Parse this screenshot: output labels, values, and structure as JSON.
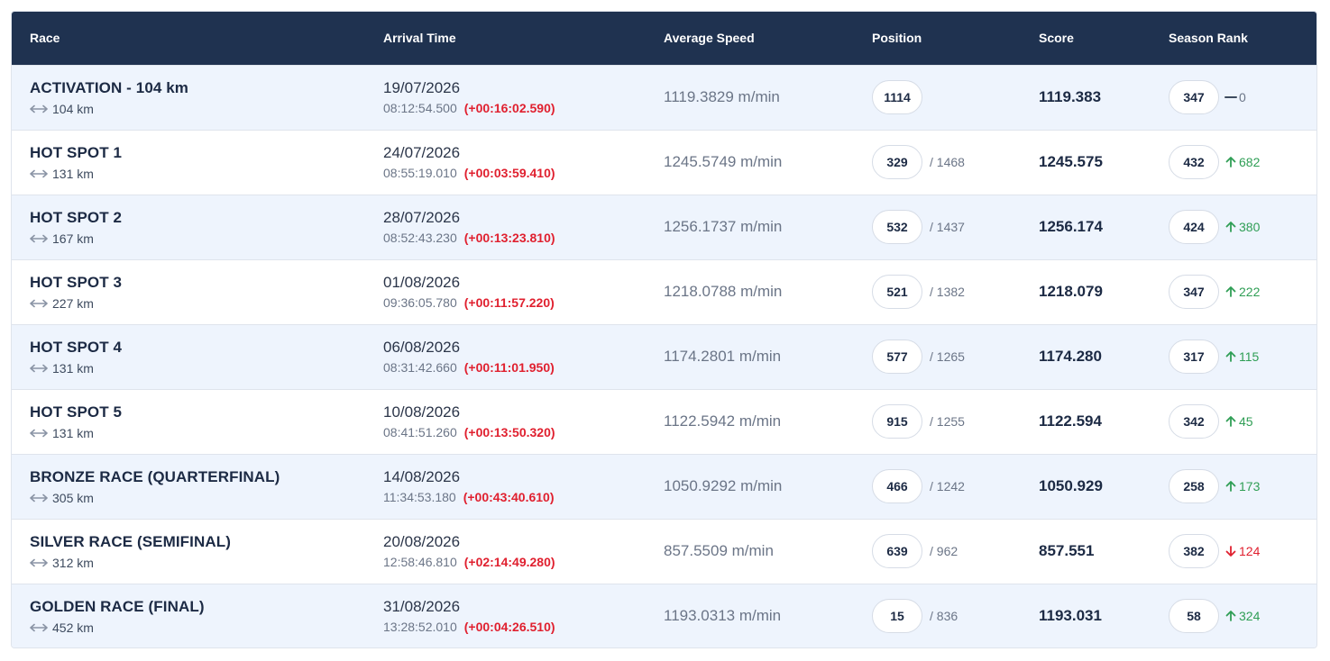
{
  "headers": {
    "race": "Race",
    "arrival": "Arrival Time",
    "speed": "Average Speed",
    "position": "Position",
    "score": "Score",
    "season_rank": "Season Rank"
  },
  "colors": {
    "header_bg": "#1f3250",
    "row_alt_bg": "#eef4fd",
    "gap_red": "#e0202f",
    "rank_up_green": "#2f9e55",
    "rank_down_red": "#e0202f"
  },
  "rows": [
    {
      "name": "ACTIVATION - 104 km",
      "distance": "104 km",
      "date": "19/07/2026",
      "time": "08:12:54.500",
      "gap": "(+00:16:02.590)",
      "speed": "1119.3829 m/min",
      "position": "1114",
      "total": "",
      "score": "1119.383",
      "rank": "347",
      "change": "0",
      "direction": "same"
    },
    {
      "name": "HOT SPOT 1",
      "distance": "131 km",
      "date": "24/07/2026",
      "time": "08:55:19.010",
      "gap": "(+00:03:59.410)",
      "speed": "1245.5749 m/min",
      "position": "329",
      "total": "/ 1468",
      "score": "1245.575",
      "rank": "432",
      "change": "682",
      "direction": "up"
    },
    {
      "name": "HOT SPOT 2",
      "distance": "167 km",
      "date": "28/07/2026",
      "time": "08:52:43.230",
      "gap": "(+00:13:23.810)",
      "speed": "1256.1737 m/min",
      "position": "532",
      "total": "/ 1437",
      "score": "1256.174",
      "rank": "424",
      "change": "380",
      "direction": "up"
    },
    {
      "name": "HOT SPOT 3",
      "distance": "227 km",
      "date": "01/08/2026",
      "time": "09:36:05.780",
      "gap": "(+00:11:57.220)",
      "speed": "1218.0788 m/min",
      "position": "521",
      "total": "/ 1382",
      "score": "1218.079",
      "rank": "347",
      "change": "222",
      "direction": "up"
    },
    {
      "name": "HOT SPOT 4",
      "distance": "131 km",
      "date": "06/08/2026",
      "time": "08:31:42.660",
      "gap": "(+00:11:01.950)",
      "speed": "1174.2801 m/min",
      "position": "577",
      "total": "/ 1265",
      "score": "1174.280",
      "rank": "317",
      "change": "115",
      "direction": "up"
    },
    {
      "name": "HOT SPOT 5",
      "distance": "131 km",
      "date": "10/08/2026",
      "time": "08:41:51.260",
      "gap": "(+00:13:50.320)",
      "speed": "1122.5942 m/min",
      "position": "915",
      "total": "/ 1255",
      "score": "1122.594",
      "rank": "342",
      "change": "45",
      "direction": "up"
    },
    {
      "name": "BRONZE RACE (QUARTERFINAL)",
      "distance": "305 km",
      "date": "14/08/2026",
      "time": "11:34:53.180",
      "gap": "(+00:43:40.610)",
      "speed": "1050.9292 m/min",
      "position": "466",
      "total": "/ 1242",
      "score": "1050.929",
      "rank": "258",
      "change": "173",
      "direction": "up"
    },
    {
      "name": "SILVER RACE (SEMIFINAL)",
      "distance": "312 km",
      "date": "20/08/2026",
      "time": "12:58:46.810",
      "gap": "(+02:14:49.280)",
      "speed": "857.5509 m/min",
      "position": "639",
      "total": "/ 962",
      "score": "857.551",
      "rank": "382",
      "change": "124",
      "direction": "down"
    },
    {
      "name": "GOLDEN RACE (FINAL)",
      "distance": "452 km",
      "date": "31/08/2026",
      "time": "13:28:52.010",
      "gap": "(+00:04:26.510)",
      "speed": "1193.0313 m/min",
      "position": "15",
      "total": "/ 836",
      "score": "1193.031",
      "rank": "58",
      "change": "324",
      "direction": "up"
    }
  ]
}
